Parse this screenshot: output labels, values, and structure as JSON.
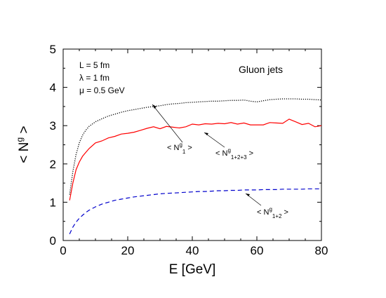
{
  "chart_data": {
    "type": "line",
    "xlabel": "E [GeV]",
    "ylabel": "< N^g >",
    "xlim": [
      0,
      80
    ],
    "ylim": [
      0,
      5
    ],
    "xticks": [
      0,
      20,
      40,
      60,
      80
    ],
    "yticks": [
      0,
      1,
      2,
      3,
      4,
      5
    ],
    "grid": false,
    "title_text": "Gluon jets",
    "params": [
      "L = 5 fm",
      "λ = 1 fm",
      "μ = 0.5 GeV"
    ],
    "series": [
      {
        "id": "n1",
        "style": "dotted",
        "color": "#000000",
        "x": [
          2,
          3,
          4,
          5,
          6,
          7,
          8,
          10,
          12,
          14,
          16,
          18,
          20,
          22,
          24,
          26,
          28,
          30,
          32,
          34,
          36,
          38,
          40,
          42,
          44,
          46,
          48,
          50,
          52,
          54,
          56,
          58,
          60,
          62,
          64,
          66,
          68,
          70,
          72,
          74,
          76,
          78,
          80
        ],
        "y": [
          1.2,
          1.8,
          2.25,
          2.55,
          2.75,
          2.88,
          2.98,
          3.1,
          3.18,
          3.25,
          3.3,
          3.35,
          3.39,
          3.42,
          3.45,
          3.48,
          3.5,
          3.52,
          3.55,
          3.57,
          3.58,
          3.6,
          3.61,
          3.62,
          3.63,
          3.64,
          3.64,
          3.65,
          3.66,
          3.66,
          3.67,
          3.64,
          3.62,
          3.65,
          3.68,
          3.69,
          3.7,
          3.7,
          3.7,
          3.69,
          3.69,
          3.68,
          3.67
        ]
      },
      {
        "id": "n123",
        "style": "solid",
        "color": "#ff0000",
        "x": [
          2,
          3,
          4,
          5,
          6,
          7,
          8,
          10,
          12,
          14,
          16,
          18,
          20,
          22,
          24,
          26,
          28,
          30,
          32,
          34,
          36,
          38,
          40,
          42,
          44,
          46,
          48,
          50,
          52,
          54,
          56,
          58,
          60,
          62,
          64,
          66,
          68,
          70,
          72,
          74,
          76,
          78,
          80
        ],
        "y": [
          1.05,
          1.5,
          1.85,
          2.05,
          2.2,
          2.3,
          2.4,
          2.55,
          2.6,
          2.68,
          2.72,
          2.78,
          2.8,
          2.83,
          2.88,
          2.93,
          2.97,
          2.92,
          2.98,
          2.96,
          2.94,
          2.97,
          3.04,
          3.02,
          3.05,
          3.04,
          3.06,
          3.05,
          3.08,
          3.04,
          3.07,
          3.02,
          3.02,
          3.02,
          3.08,
          3.07,
          3.06,
          3.17,
          3.1,
          3.03,
          3.06,
          2.97,
          3.0
        ]
      },
      {
        "id": "n12",
        "style": "dashed",
        "color": "#0000cc",
        "x": [
          2,
          3,
          4,
          5,
          6,
          7,
          8,
          10,
          12,
          14,
          16,
          18,
          20,
          22,
          24,
          26,
          28,
          30,
          32,
          34,
          36,
          38,
          40,
          42,
          44,
          46,
          48,
          50,
          52,
          54,
          56,
          58,
          60,
          62,
          64,
          66,
          68,
          70,
          72,
          74,
          76,
          78,
          80
        ],
        "y": [
          0.17,
          0.35,
          0.48,
          0.58,
          0.66,
          0.73,
          0.79,
          0.88,
          0.95,
          1.0,
          1.05,
          1.08,
          1.11,
          1.14,
          1.16,
          1.18,
          1.2,
          1.22,
          1.23,
          1.24,
          1.25,
          1.26,
          1.27,
          1.28,
          1.28,
          1.29,
          1.3,
          1.3,
          1.31,
          1.31,
          1.32,
          1.32,
          1.32,
          1.33,
          1.33,
          1.33,
          1.34,
          1.34,
          1.34,
          1.34,
          1.35,
          1.35,
          1.35
        ]
      }
    ],
    "annotations": [
      {
        "id": "n1",
        "main": "< N",
        "sup": "g",
        "sub": "1",
        "end": " >"
      },
      {
        "id": "n123",
        "main": "< N",
        "sup": "g",
        "sub": "1+2+3",
        "end": " >"
      },
      {
        "id": "n12",
        "main": "< N",
        "sup": "g",
        "sub": "1+2",
        "end": " >"
      }
    ]
  }
}
